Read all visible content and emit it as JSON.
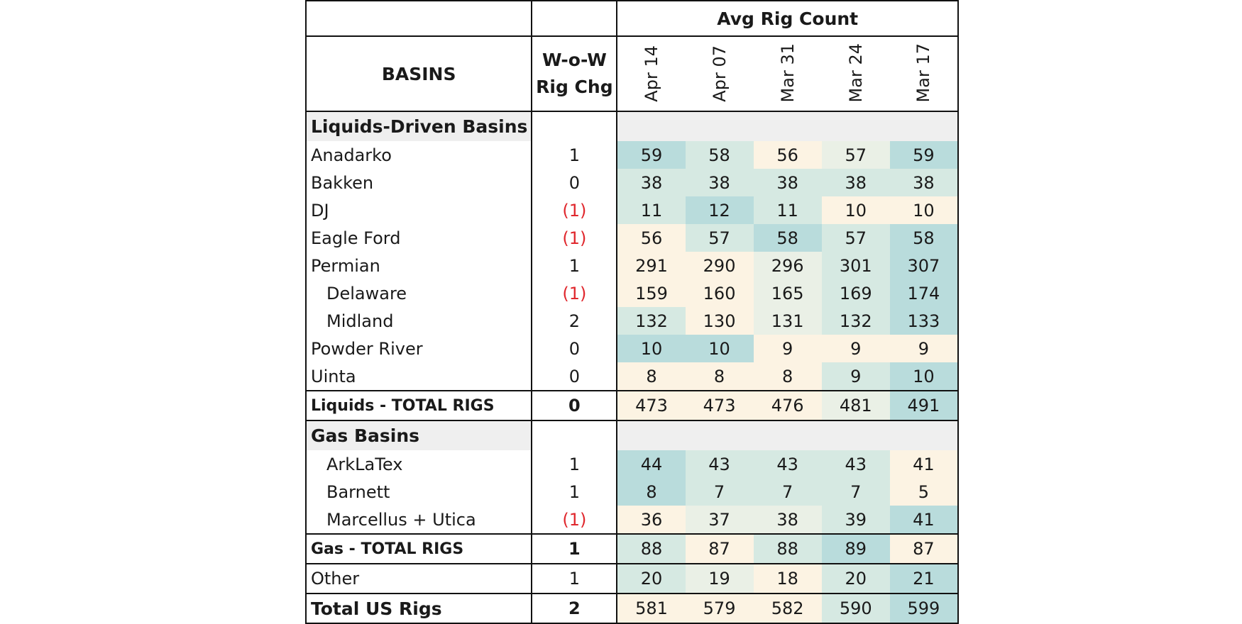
{
  "header": {
    "group_title": "Avg Rig Count",
    "basins_label": "BASINS",
    "change_label_1": "W-o-W",
    "change_label_2": "Rig Chg",
    "dates": [
      "Apr 14",
      "Apr 07",
      "Mar 31",
      "Mar 24",
      "Mar 17"
    ]
  },
  "sections": [
    {
      "title": "Liquids-Driven Basins",
      "rows": [
        {
          "name": "Anadarko",
          "chg": "1",
          "values": [
            "59",
            "58",
            "56",
            "57",
            "59"
          ]
        },
        {
          "name": "Bakken",
          "chg": "0",
          "values": [
            "38",
            "38",
            "38",
            "38",
            "38"
          ]
        },
        {
          "name": "DJ",
          "chg": "(1)",
          "values": [
            "11",
            "12",
            "11",
            "10",
            "10"
          ]
        },
        {
          "name": "Eagle Ford",
          "chg": "(1)",
          "values": [
            "56",
            "57",
            "58",
            "57",
            "58"
          ]
        },
        {
          "name": "Permian",
          "chg": "1",
          "values": [
            "291",
            "290",
            "296",
            "301",
            "307"
          ]
        },
        {
          "name": "Delaware",
          "chg": "(1)",
          "values": [
            "159",
            "160",
            "165",
            "169",
            "174"
          ]
        },
        {
          "name": "Midland",
          "chg": "2",
          "values": [
            "132",
            "130",
            "131",
            "132",
            "133"
          ]
        },
        {
          "name": "Powder River",
          "chg": "0",
          "values": [
            "10",
            "10",
            "9",
            "9",
            "9"
          ]
        },
        {
          "name": "Uinta",
          "chg": "0",
          "values": [
            "8",
            "8",
            "8",
            "9",
            "10"
          ]
        }
      ],
      "total": {
        "name": "Liquids - TOTAL RIGS",
        "chg": "0",
        "values": [
          "473",
          "473",
          "476",
          "481",
          "491"
        ]
      }
    },
    {
      "title": "Gas Basins",
      "rows": [
        {
          "name": "ArkLaTex",
          "chg": "1",
          "values": [
            "44",
            "43",
            "43",
            "43",
            "41"
          ]
        },
        {
          "name": "Barnett",
          "chg": "1",
          "values": [
            "8",
            "7",
            "7",
            "7",
            "5"
          ]
        },
        {
          "name": "Marcellus + Utica",
          "chg": "(1)",
          "values": [
            "36",
            "37",
            "38",
            "39",
            "41"
          ]
        }
      ],
      "total": {
        "name": "Gas - TOTAL RIGS",
        "chg": "1",
        "values": [
          "88",
          "87",
          "88",
          "89",
          "87"
        ]
      }
    }
  ],
  "other": {
    "name": "Other",
    "chg": "1",
    "values": [
      "20",
      "19",
      "18",
      "20",
      "21"
    ]
  },
  "grand_total": {
    "name": "Total US Rigs",
    "chg": "2",
    "values": [
      "581",
      "579",
      "582",
      "590",
      "599"
    ]
  },
  "colors": {
    "heat_low": "#fcf3e3",
    "heat_mid_low": "#eaf0e6",
    "heat_mid_high": "#d6e9e2",
    "heat_high": "#b9dcdc",
    "negative_text": "#e0282e",
    "section_band": "#efefef"
  }
}
